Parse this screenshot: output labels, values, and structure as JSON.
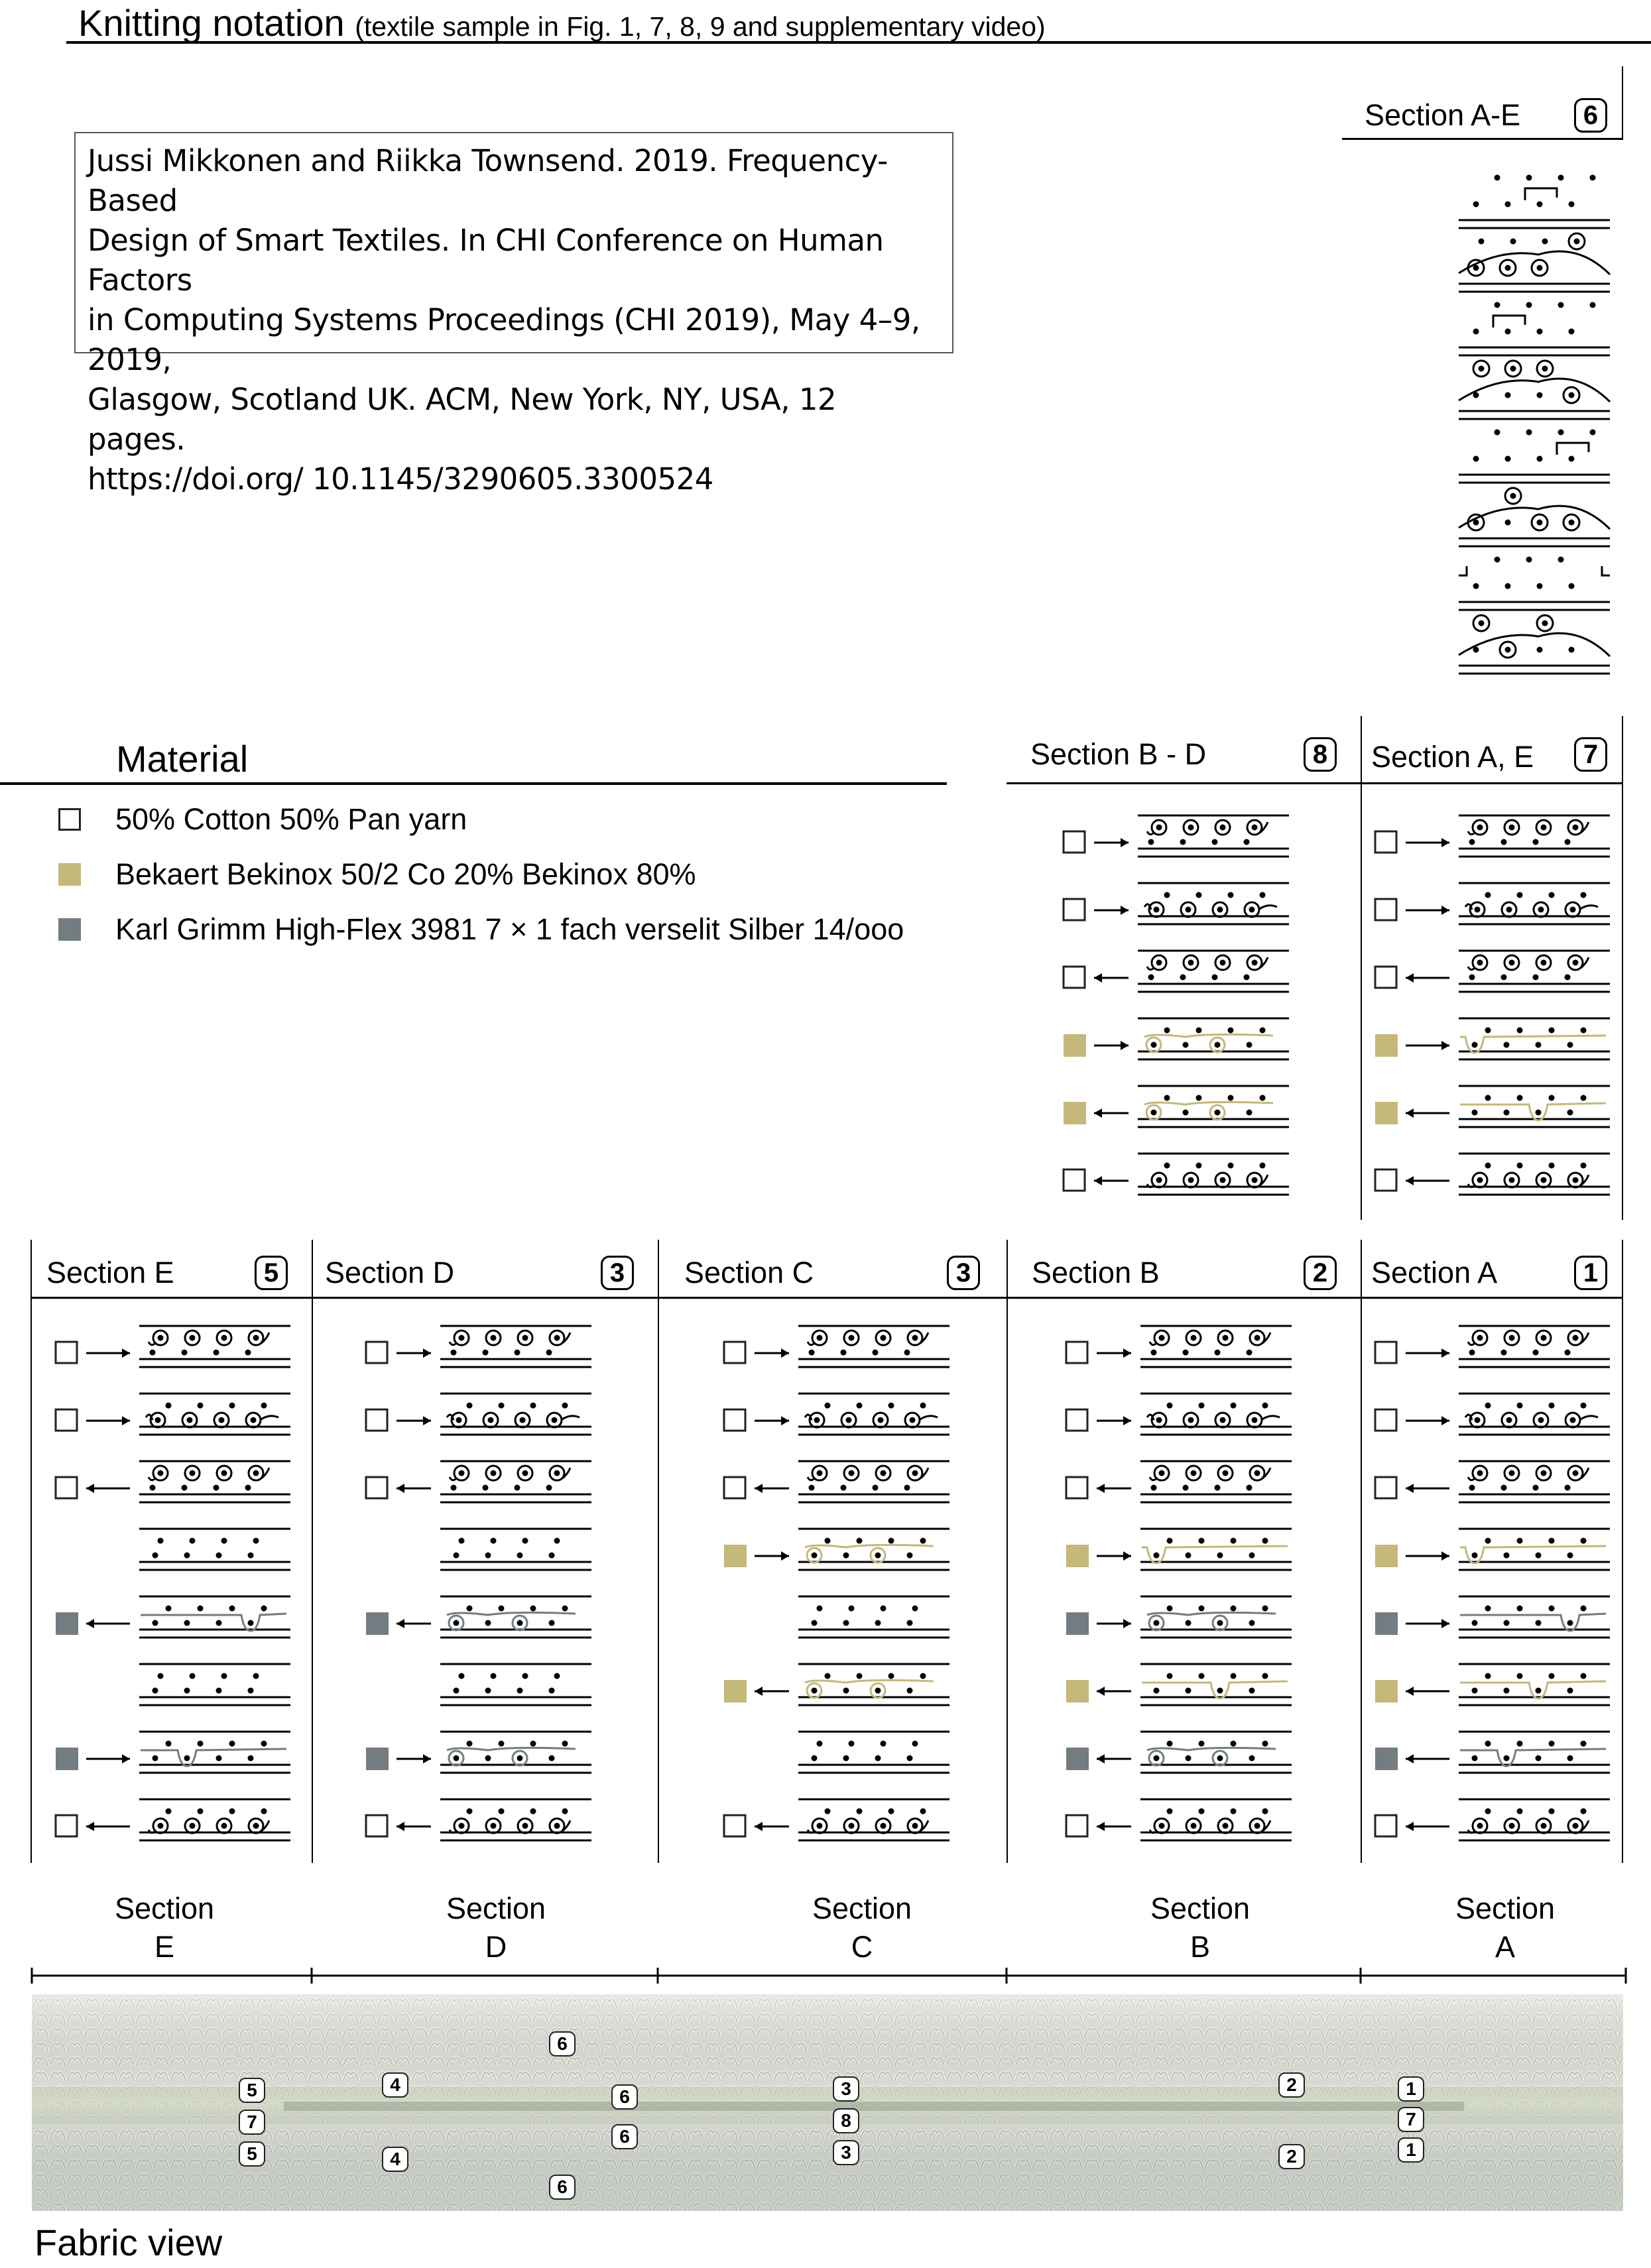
{
  "header": {
    "title": "Knitting notation",
    "subtitle": "(textile sample in Fig. 1, 7, 8, 9 and supplementary video)"
  },
  "reference": {
    "lines": [
      "Jussi Mikkonen and Riikka Townsend. 2019. Frequency-Based",
      "Design of Smart Textiles. In CHI Conference on Human Factors",
      "in Computing Systems Proceedings (CHI 2019), May 4–9, 2019,",
      "Glasgow, Scotland UK. ACM, New York, NY, USA, 12 pages.",
      "https://doi.org/ 10.1145/3290605.3300524"
    ]
  },
  "material": {
    "heading": "Material",
    "items": [
      {
        "swatch": "white",
        "color": "#ffffff",
        "label": "50% Cotton 50% Pan yarn"
      },
      {
        "swatch": "gold",
        "color": "#c4b87a",
        "label": "Bekaert Bekinox 50/2 Co 20% Bekinox 80%"
      },
      {
        "swatch": "grey",
        "color": "#737c81",
        "label": "Karl Grimm High-Flex 3981 7 × 1 fach verselit Silber 14/ooo"
      }
    ]
  },
  "colors": {
    "gold": "#c4b87a",
    "grey": "#737c81",
    "black": "#000000"
  },
  "sections": {
    "ae": {
      "label": "Section A-E",
      "badge": "6"
    },
    "bd": {
      "label": "Section B - D",
      "badge": "8"
    },
    "a_e": {
      "label": "Section A, E",
      "badge": "7"
    },
    "e": {
      "label": "Section E",
      "badge": "5"
    },
    "d": {
      "label": "Section D",
      "badge": "3"
    },
    "c": {
      "label": "Section C",
      "badge": "3"
    },
    "b": {
      "label": "Section B",
      "badge": "2"
    },
    "a": {
      "label": "Section A",
      "badge": "1"
    }
  },
  "notation": {
    "ae": [
      {
        "type": "dots",
        "top": [
          1,
          2,
          3,
          4
        ],
        "bot": [
          0,
          1,
          2,
          3
        ],
        "transfer": [
          1,
          2
        ]
      },
      {
        "type": "loops",
        "top": [
          3
        ],
        "bot": [
          0,
          1,
          2
        ],
        "dotsTop": [
          0,
          1,
          2
        ],
        "color": "black"
      },
      {
        "type": "dots",
        "top": [
          1,
          2,
          3,
          4
        ],
        "bot": [
          0,
          1,
          2,
          3
        ],
        "transfer": [
          0,
          1
        ]
      },
      {
        "type": "loops",
        "top": [
          0,
          1,
          2
        ],
        "bot": [
          3
        ],
        "dotsBot": [
          0,
          1,
          2
        ],
        "color": "black"
      },
      {
        "type": "dots",
        "top": [
          1,
          2,
          3,
          4
        ],
        "bot": [
          0,
          1,
          2,
          3
        ],
        "transfer": [
          2,
          3
        ]
      },
      {
        "type": "loops",
        "top": [
          1
        ],
        "bot": [
          0,
          2,
          3
        ],
        "dotsBot": [
          1
        ],
        "color": "black"
      },
      {
        "type": "dots",
        "top": [
          1,
          2,
          3
        ],
        "bot": [
          0,
          1,
          2,
          3
        ],
        "rack": true
      },
      {
        "type": "loops",
        "top": [
          0,
          2
        ],
        "bot": [
          1
        ],
        "dotsBot": [
          0,
          2,
          3
        ],
        "color": "black"
      }
    ],
    "bd": [
      {
        "yarn": "white",
        "dir": "right",
        "kind": "loopsTop"
      },
      {
        "yarn": "white",
        "dir": "right",
        "kind": "loopsBot"
      },
      {
        "yarn": "white",
        "dir": "left",
        "kind": "loopsTop"
      },
      {
        "yarn": "gold",
        "dir": "right",
        "kind": "tuck2Bot"
      },
      {
        "yarn": "gold",
        "dir": "left",
        "kind": "tuck2Bot"
      },
      {
        "yarn": "white",
        "dir": "left",
        "kind": "loopsBotOnly"
      }
    ],
    "a_e": [
      {
        "yarn": "white",
        "dir": "right",
        "kind": "loopsTop"
      },
      {
        "yarn": "white",
        "dir": "right",
        "kind": "loopsBot"
      },
      {
        "yarn": "white",
        "dir": "left",
        "kind": "loopsTop"
      },
      {
        "yarn": "gold",
        "dir": "right",
        "kind": "dipLeft"
      },
      {
        "yarn": "gold",
        "dir": "left",
        "kind": "dipMid"
      },
      {
        "yarn": "white",
        "dir": "left",
        "kind": "loopsBotOnly"
      }
    ],
    "e": [
      {
        "yarn": "white",
        "dir": "right",
        "kind": "loopsTop"
      },
      {
        "yarn": "white",
        "dir": "right",
        "kind": "loopsBot"
      },
      {
        "yarn": "white",
        "dir": "left",
        "kind": "loopsTop"
      },
      {
        "yarn": "none",
        "dir": "none",
        "kind": "plain"
      },
      {
        "yarn": "grey",
        "dir": "left",
        "kind": "dipRight"
      },
      {
        "yarn": "none",
        "dir": "none",
        "kind": "plain"
      },
      {
        "yarn": "grey",
        "dir": "right",
        "kind": "dipLeftB"
      },
      {
        "yarn": "white",
        "dir": "left",
        "kind": "loopsBotOnly"
      }
    ],
    "d": [
      {
        "yarn": "white",
        "dir": "right",
        "kind": "loopsTop"
      },
      {
        "yarn": "white",
        "dir": "right",
        "kind": "loopsBot"
      },
      {
        "yarn": "white",
        "dir": "left",
        "kind": "loopsTop"
      },
      {
        "yarn": "none",
        "dir": "none",
        "kind": "plain"
      },
      {
        "yarn": "grey",
        "dir": "left",
        "kind": "tuck2Bot"
      },
      {
        "yarn": "none",
        "dir": "none",
        "kind": "plain"
      },
      {
        "yarn": "grey",
        "dir": "right",
        "kind": "tuck2Bot"
      },
      {
        "yarn": "white",
        "dir": "left",
        "kind": "loopsBotOnly"
      }
    ],
    "c": [
      {
        "yarn": "white",
        "dir": "right",
        "kind": "loopsTop"
      },
      {
        "yarn": "white",
        "dir": "right",
        "kind": "loopsBot"
      },
      {
        "yarn": "white",
        "dir": "left",
        "kind": "loopsTop"
      },
      {
        "yarn": "gold",
        "dir": "right",
        "kind": "tuck2Bot"
      },
      {
        "yarn": "none",
        "dir": "none",
        "kind": "plain"
      },
      {
        "yarn": "gold",
        "dir": "left",
        "kind": "tuck2Bot"
      },
      {
        "yarn": "none",
        "dir": "none",
        "kind": "plain"
      },
      {
        "yarn": "white",
        "dir": "left",
        "kind": "loopsBotOnly"
      }
    ],
    "b": [
      {
        "yarn": "white",
        "dir": "right",
        "kind": "loopsTop"
      },
      {
        "yarn": "white",
        "dir": "right",
        "kind": "loopsBot"
      },
      {
        "yarn": "white",
        "dir": "left",
        "kind": "loopsTop"
      },
      {
        "yarn": "gold",
        "dir": "right",
        "kind": "dipLeft"
      },
      {
        "yarn": "grey",
        "dir": "right",
        "kind": "tuck2Bot"
      },
      {
        "yarn": "gold",
        "dir": "left",
        "kind": "dipMid"
      },
      {
        "yarn": "grey",
        "dir": "left",
        "kind": "tuck2Bot"
      },
      {
        "yarn": "white",
        "dir": "left",
        "kind": "loopsBotOnly"
      }
    ],
    "a": [
      {
        "yarn": "white",
        "dir": "right",
        "kind": "loopsTop"
      },
      {
        "yarn": "white",
        "dir": "right",
        "kind": "loopsBot"
      },
      {
        "yarn": "white",
        "dir": "left",
        "kind": "loopsTop"
      },
      {
        "yarn": "gold",
        "dir": "right",
        "kind": "dipLeft"
      },
      {
        "yarn": "grey",
        "dir": "right",
        "kind": "dipRight"
      },
      {
        "yarn": "gold",
        "dir": "left",
        "kind": "dipMid"
      },
      {
        "yarn": "grey",
        "dir": "left",
        "kind": "dipLeftB"
      },
      {
        "yarn": "white",
        "dir": "left",
        "kind": "loopsBotOnly"
      }
    ]
  },
  "axis": {
    "ticks": [
      {
        "word": "Section",
        "letter": "E"
      },
      {
        "word": "Section",
        "letter": "D"
      },
      {
        "word": "Section",
        "letter": "C"
      },
      {
        "word": "Section",
        "letter": "B"
      },
      {
        "word": "Section",
        "letter": "A"
      }
    ]
  },
  "fabric": {
    "label": "Fabric view",
    "markers": [
      "6",
      "5",
      "7",
      "5",
      "4",
      "4",
      "6",
      "6",
      "6",
      "3",
      "8",
      "3",
      "2",
      "2",
      "1",
      "7",
      "1"
    ]
  }
}
